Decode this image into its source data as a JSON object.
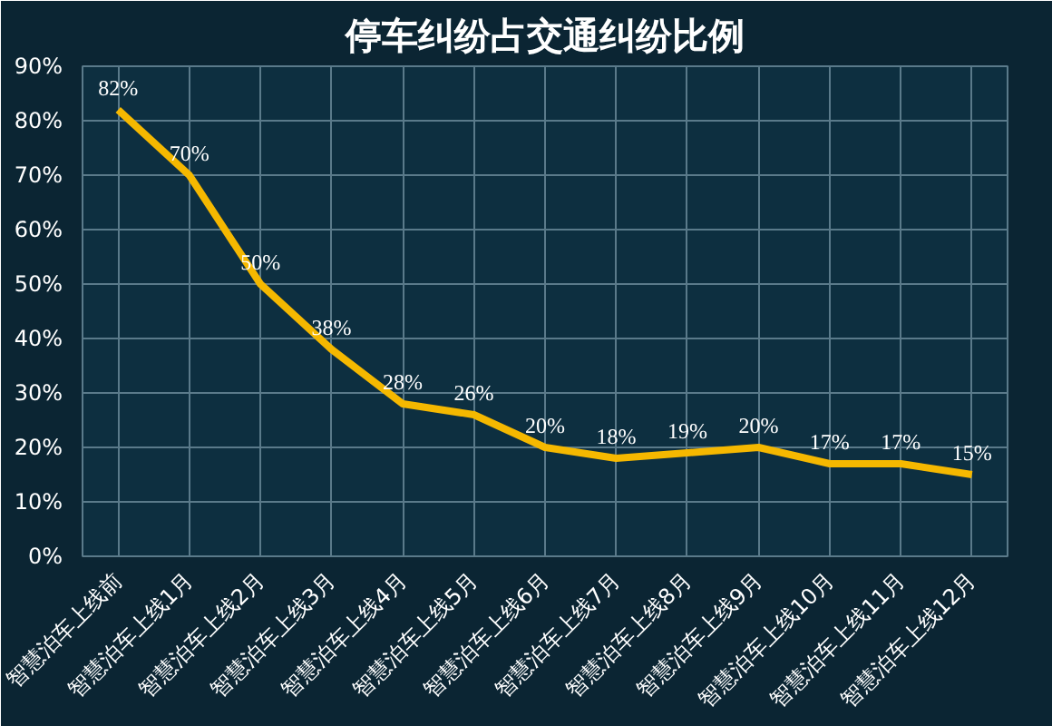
{
  "chart_data": {
    "type": "line",
    "title": "停车纠纷占交通纠纷比例",
    "categories": [
      "智慧泊车上线前",
      "智慧泊车上线1月",
      "智慧泊车上线2月",
      "智慧泊车上线3月",
      "智慧泊车上线4月",
      "智慧泊车上线5月",
      "智慧泊车上线6月",
      "智慧泊车上线7月",
      "智慧泊车上线8月",
      "智慧泊车上线9月",
      "智慧泊车上线10月",
      "智慧泊车上线11月",
      "智慧泊车上线12月"
    ],
    "series": [
      {
        "color": "#f5b800",
        "values": [
          82,
          70,
          50,
          38,
          28,
          26,
          20,
          18,
          19,
          20,
          17,
          17,
          15
        ],
        "value_labels": [
          "82%",
          "70%",
          "50%",
          "38%",
          "28%",
          "26%",
          "20%",
          "18%",
          "19%",
          "20%",
          "17%",
          "17%",
          "15%"
        ]
      }
    ],
    "ylim": [
      0,
      90
    ],
    "yticks": [
      {
        "value": 0,
        "label": "0%"
      },
      {
        "value": 10,
        "label": "10%"
      },
      {
        "value": 20,
        "label": "20%"
      },
      {
        "value": 30,
        "label": "30%"
      },
      {
        "value": 40,
        "label": "40%"
      },
      {
        "value": 50,
        "label": "50%"
      },
      {
        "value": 60,
        "label": "60%"
      },
      {
        "value": 70,
        "label": "70%"
      },
      {
        "value": 80,
        "label": "80%"
      },
      {
        "value": 90,
        "label": "90%"
      }
    ],
    "grid": true,
    "marker": "none",
    "line_style": "solid"
  }
}
